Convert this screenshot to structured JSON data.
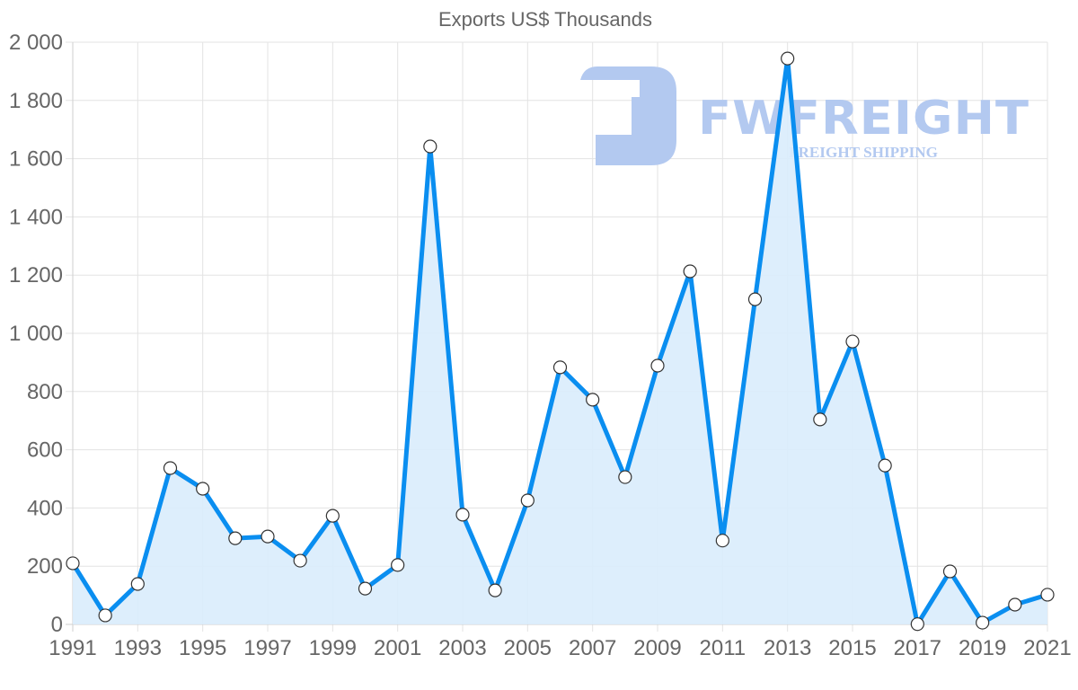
{
  "chart_data": {
    "type": "area",
    "title": "Exports US$ Thousands",
    "xlabel": "",
    "ylabel": "",
    "x": [
      1991,
      1992,
      1993,
      1994,
      1995,
      1996,
      1997,
      1998,
      1999,
      2000,
      2001,
      2002,
      2003,
      2004,
      2005,
      2006,
      2007,
      2008,
      2009,
      2010,
      2011,
      2012,
      2013,
      2014,
      2015,
      2016,
      2017,
      2018,
      2019,
      2020,
      2021
    ],
    "series": [
      {
        "name": "Exports US$ Thousands",
        "values": [
          210,
          31,
          139,
          537,
          466,
          296,
          302,
          219,
          373,
          123,
          204,
          1642,
          377,
          117,
          426,
          883,
          772,
          506,
          889,
          1213,
          288,
          1117,
          1944,
          704,
          972,
          546,
          1,
          182,
          6,
          68,
          102
        ]
      }
    ],
    "ylim": [
      0,
      2000
    ],
    "yticks": [
      0,
      200,
      400,
      600,
      800,
      1000,
      1200,
      1400,
      1600,
      1800,
      2000
    ],
    "ytick_labels": [
      "0",
      "200",
      "400",
      "600",
      "800",
      "1 000",
      "1 200",
      "1 400",
      "1 600",
      "1 800",
      "2 000"
    ],
    "xtick_labels": [
      "1991",
      "1993",
      "1995",
      "1997",
      "1999",
      "2001",
      "2003",
      "2005",
      "2007",
      "2009",
      "2011",
      "2013",
      "2015",
      "2017",
      "2019",
      "2021"
    ],
    "grid": true,
    "legend": "none"
  },
  "style": {
    "line_color": "#0a8ef0",
    "fill_color": "#d9ecfc",
    "point_fill": "#ffffff",
    "point_stroke": "#333333",
    "grid_color": "#e3e3e3",
    "text_color": "#666666",
    "watermark_color": "#b3c9f0"
  },
  "watermark": {
    "brand": "FWFREIGHT",
    "tagline": "FREIGHT SHIPPING"
  }
}
